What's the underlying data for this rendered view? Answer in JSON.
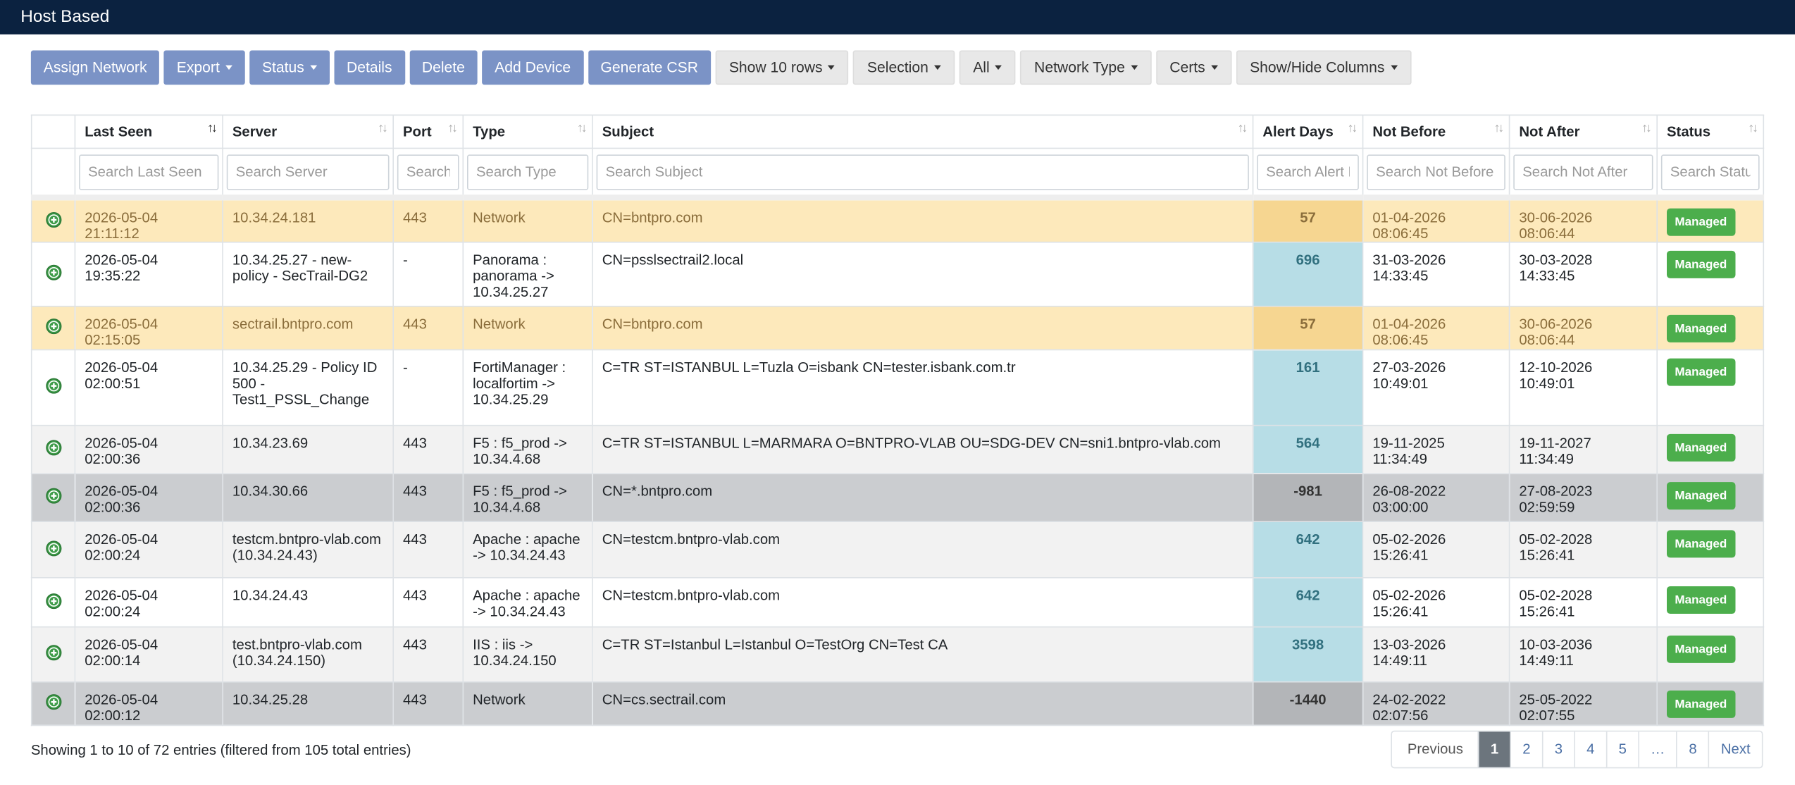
{
  "header": {
    "title": "Host Based"
  },
  "toolbar": {
    "buttons": [
      "Assign Network",
      "Export",
      "Status",
      "Details",
      "Delete",
      "Add Device",
      "Generate CSR",
      "Show 10 rows",
      "Selection",
      "All",
      "Network Type",
      "Certs",
      "Show/Hide Columns"
    ]
  },
  "table": {
    "columns": [
      "Last Seen",
      "Server",
      "Port",
      "Type",
      "Subject",
      "Alert Days",
      "Not Before",
      "Not After",
      "Status"
    ],
    "search_placeholders": [
      "Search Last Seen",
      "Search Server",
      "Search",
      "Search Type",
      "Search Subject",
      "Search Alert Days",
      "Search Not Before",
      "Search Not After",
      "Search Status"
    ],
    "rows": [
      {
        "last_seen": "2026-05-04 21:11:12",
        "server": "10.34.24.181",
        "port": 443,
        "type": "Network",
        "subject": "CN=bntpro.com",
        "alert_days": 57,
        "not_before": "01-04-2026 08:06:45",
        "not_after": "30-06-2026 08:06:44",
        "status": "Managed"
      },
      {
        "last_seen": "2026-05-04 19:35:22",
        "server": "10.34.25.27 - new-policy - SecTrail-DG2",
        "port": "-",
        "type": "Panorama : panorama -> 10.34.25.27",
        "subject": "CN=psslsectrail2.local",
        "alert_days": 696,
        "not_before": "31-03-2026 14:33:45",
        "not_after": "30-03-2028 14:33:45",
        "status": "Managed"
      },
      {
        "last_seen": "2026-05-04 02:15:05",
        "server": "sectrail.bntpro.com",
        "port": 443,
        "type": "Network",
        "subject": "CN=bntpro.com",
        "alert_days": 57,
        "not_before": "01-04-2026 08:06:45",
        "not_after": "30-06-2026 08:06:44",
        "status": "Managed"
      },
      {
        "last_seen": "2026-05-04 02:00:51",
        "server": "10.34.25.29 - Policy ID 500 - Test1_PSSL_Change",
        "port": "-",
        "type": "FortiManager : localfortim -> 10.34.25.29",
        "subject": "C=TR ST=ISTANBUL L=Tuzla O=isbank CN=tester.isbank.com.tr",
        "alert_days": 161,
        "not_before": "27-03-2026 10:49:01",
        "not_after": "12-10-2026 10:49:01",
        "status": "Managed"
      },
      {
        "last_seen": "2026-05-04 02:00:36",
        "server": "10.34.23.69",
        "port": 443,
        "type": "F5 : f5_prod -> 10.34.4.68",
        "subject": "C=TR ST=ISTANBUL L=MARMARA O=BNTPRO-VLAB OU=SDG-DEV CN=sni1.bntpro-vlab.com",
        "alert_days": 564,
        "not_before": "19-11-2025 11:34:49",
        "not_after": "19-11-2027 11:34:49",
        "status": "Managed"
      },
      {
        "last_seen": "2026-05-04 02:00:36",
        "server": "10.34.30.66",
        "port": 443,
        "type": "F5 : f5_prod -> 10.34.4.68",
        "subject": "CN=*.bntpro.com",
        "alert_days": -981,
        "not_before": "26-08-2022 03:00:00",
        "not_after": "27-08-2023 02:59:59",
        "status": "Managed"
      },
      {
        "last_seen": "2026-05-04 02:00:24",
        "server": "testcm.bntpro-vlab.com (10.34.24.43)",
        "port": 443,
        "type": "Apache : apache -> 10.34.24.43",
        "subject": "CN=testcm.bntpro-vlab.com",
        "alert_days": 642,
        "not_before": "05-02-2026 15:26:41",
        "not_after": "05-02-2028 15:26:41",
        "status": "Managed"
      },
      {
        "last_seen": "2026-05-04 02:00:24",
        "server": "10.34.24.43",
        "port": 443,
        "type": "Apache : apache -> 10.34.24.43",
        "subject": "CN=testcm.bntpro-vlab.com",
        "alert_days": 642,
        "not_before": "05-02-2026 15:26:41",
        "not_after": "05-02-2028 15:26:41",
        "status": "Managed"
      },
      {
        "last_seen": "2026-05-04 02:00:14",
        "server": "test.bntpro-vlab.com (10.34.24.150)",
        "port": 443,
        "type": "IIS : iis -> 10.34.24.150",
        "subject": "C=TR ST=Istanbul L=Istanbul O=TestOrg CN=Test CA",
        "alert_days": 3598,
        "not_before": "13-03-2026 14:49:11",
        "not_after": "10-03-2036 14:49:11",
        "status": "Managed"
      },
      {
        "last_seen": "2026-05-04 02:00:12",
        "server": "10.34.25.28",
        "port": 443,
        "type": "Network",
        "subject": "CN=cs.sectrail.com",
        "alert_days": -1440,
        "not_before": "24-02-2022 02:07:56",
        "not_after": "25-05-2022 02:07:55",
        "status": "Managed"
      }
    ]
  },
  "footer": {
    "summary": "Showing 1 to 10 of 72 entries (filtered from 105 total entries)"
  },
  "pagination": [
    "Previous",
    "1",
    "2",
    "3",
    "4",
    "5",
    "…",
    "8",
    "Next"
  ]
}
